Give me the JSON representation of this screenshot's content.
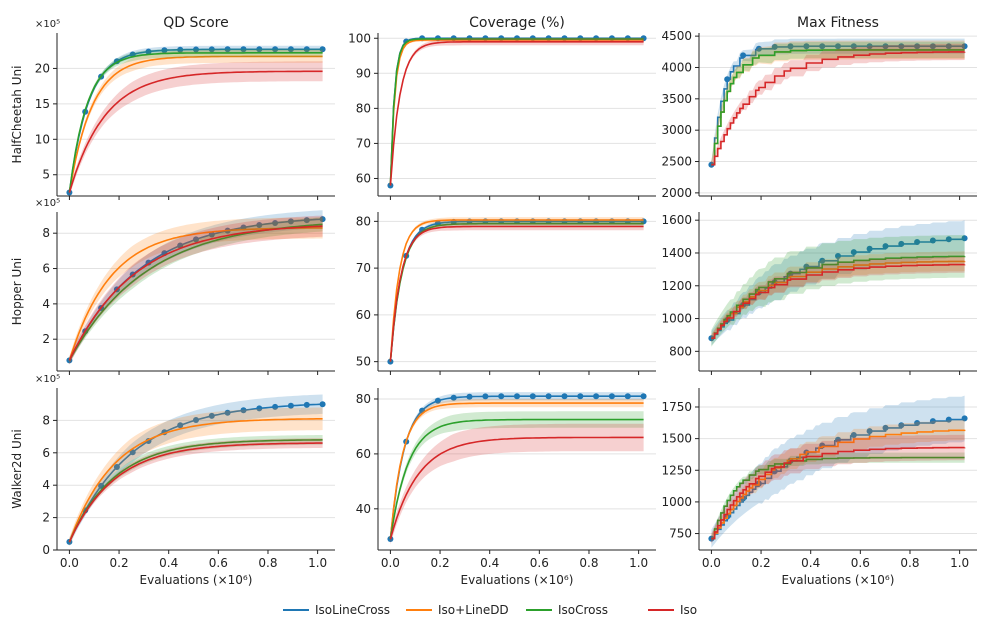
{
  "figure": {
    "column_titles": [
      "QD Score",
      "Coverage (%)",
      "Max Fitness"
    ],
    "row_labels": [
      "HalfCheetah Uni",
      "Hopper Uni",
      "Walker2d Uni"
    ],
    "xlabel": "Evaluations (×10⁶)",
    "exponent_label": "×10⁵",
    "legend": [
      {
        "name": "IsoLineCross",
        "color": "#1f77b4"
      },
      {
        "name": "Iso+LineDD",
        "color": "#ff7f0e"
      },
      {
        "name": "IsoCross",
        "color": "#2ca02c"
      },
      {
        "name": "Iso",
        "color": "#d62728"
      }
    ]
  },
  "chart_data": [
    {
      "type": "line",
      "row": 0,
      "col": 0,
      "title": "QD Score",
      "ylabel": "HalfCheetah Uni",
      "xlim": [
        -0.05,
        1.07
      ],
      "ylim": [
        2,
        25
      ],
      "yticks": [
        5,
        10,
        15,
        20
      ],
      "xticks": [
        0.0,
        0.2,
        0.4,
        0.6,
        0.8,
        1.0
      ],
      "y_unit": "×10⁵",
      "curve": "smooth",
      "y0": 2.5,
      "series": [
        {
          "name": "IsoLineCross",
          "final": 22.7,
          "k": 13,
          "band": 0.5,
          "markers": true
        },
        {
          "name": "Iso+LineDD",
          "final": 21.7,
          "k": 11,
          "band": 0.9
        },
        {
          "name": "IsoCross",
          "final": 22.2,
          "k": 14,
          "band": 0.6
        },
        {
          "name": "Iso",
          "final": 19.6,
          "k": 7,
          "band": 1.4
        }
      ]
    },
    {
      "type": "line",
      "row": 0,
      "col": 1,
      "title": "Coverage (%)",
      "ylabel": "",
      "xlim": [
        -0.05,
        1.07
      ],
      "ylim": [
        55,
        101.5
      ],
      "yticks": [
        60,
        70,
        80,
        90,
        100
      ],
      "xticks": [
        0.0,
        0.2,
        0.4,
        0.6,
        0.8,
        1.0
      ],
      "curve": "smooth",
      "y0": 58,
      "series": [
        {
          "name": "IsoLineCross",
          "final": 100,
          "k": 60,
          "band": 0.3,
          "markers": true
        },
        {
          "name": "Iso+LineDD",
          "final": 99.5,
          "k": 55,
          "band": 0.6
        },
        {
          "name": "IsoCross",
          "final": 99.8,
          "k": 60,
          "band": 0.3
        },
        {
          "name": "Iso",
          "final": 99.0,
          "k": 26,
          "band": 1.0
        }
      ]
    },
    {
      "type": "line",
      "row": 0,
      "col": 2,
      "title": "Max Fitness",
      "ylabel": "",
      "xlim": [
        -0.05,
        1.07
      ],
      "ylim": [
        1950,
        4550
      ],
      "yticks": [
        2000,
        2500,
        3000,
        3500,
        4000,
        4500
      ],
      "xticks": [
        0.0,
        0.2,
        0.4,
        0.6,
        0.8,
        1.0
      ],
      "curve": "step",
      "y0": 2450,
      "series": [
        {
          "name": "IsoLineCross",
          "final": 4340,
          "k": 20,
          "band": 120,
          "markers": true
        },
        {
          "name": "Iso+LineDD",
          "final": 4280,
          "k": 16,
          "band": 150
        },
        {
          "name": "IsoCross",
          "final": 4280,
          "k": 16,
          "band": 130
        },
        {
          "name": "Iso",
          "final": 4250,
          "k": 6,
          "band": 130
        }
      ]
    },
    {
      "type": "line",
      "row": 1,
      "col": 0,
      "title": "",
      "ylabel": "Hopper Uni",
      "xlim": [
        -0.05,
        1.07
      ],
      "ylim": [
        0.2,
        9.2
      ],
      "yticks": [
        2,
        4,
        6,
        8
      ],
      "xticks": [
        0.0,
        0.2,
        0.4,
        0.6,
        0.8,
        1.0
      ],
      "y_unit": "×10⁵",
      "curve": "smooth",
      "y0": 0.8,
      "series": [
        {
          "name": "IsoLineCross",
          "final": 8.8,
          "k": 3.5,
          "band": 0.5,
          "markers": true
        },
        {
          "name": "Iso+LineDD",
          "final": 8.3,
          "k": 6,
          "band": 0.6
        },
        {
          "name": "IsoCross",
          "final": 8.5,
          "k": 3.2,
          "band": 0.4
        },
        {
          "name": "Iso",
          "final": 8.4,
          "k": 3.8,
          "band": 0.6
        }
      ]
    },
    {
      "type": "line",
      "row": 1,
      "col": 1,
      "title": "",
      "ylabel": "",
      "xlim": [
        -0.05,
        1.07
      ],
      "ylim": [
        48,
        82
      ],
      "yticks": [
        50,
        60,
        70,
        80
      ],
      "xticks": [
        0.0,
        0.2,
        0.4,
        0.6,
        0.8,
        1.0
      ],
      "curve": "smooth",
      "y0": 50,
      "series": [
        {
          "name": "IsoLineCross",
          "final": 80,
          "k": 22,
          "band": 0.5,
          "markers": true
        },
        {
          "name": "Iso+LineDD",
          "final": 80.3,
          "k": 28,
          "band": 0.6
        },
        {
          "name": "IsoCross",
          "final": 79.5,
          "k": 22,
          "band": 0.5
        },
        {
          "name": "Iso",
          "final": 78.9,
          "k": 24,
          "band": 0.8
        }
      ]
    },
    {
      "type": "line",
      "row": 1,
      "col": 2,
      "title": "",
      "ylabel": "",
      "xlim": [
        -0.05,
        1.07
      ],
      "ylim": [
        680,
        1650
      ],
      "yticks": [
        800,
        1000,
        1200,
        1400,
        1600
      ],
      "xticks": [
        0.0,
        0.2,
        0.4,
        0.6,
        0.8,
        1.0
      ],
      "curve": "step",
      "y0": 880,
      "series": [
        {
          "name": "IsoLineCross",
          "final": 1490,
          "k": 3,
          "band": 110,
          "markers": true
        },
        {
          "name": "Iso+LineDD",
          "final": 1350,
          "k": 5,
          "band": 60
        },
        {
          "name": "IsoCross",
          "final": 1380,
          "k": 5,
          "band": 130
        },
        {
          "name": "Iso",
          "final": 1330,
          "k": 5,
          "band": 50
        }
      ]
    },
    {
      "type": "line",
      "row": 2,
      "col": 0,
      "title": "",
      "ylabel": "Walker2d Uni",
      "xlim": [
        -0.05,
        1.07
      ],
      "ylim": [
        0,
        10
      ],
      "yticks": [
        0,
        2,
        4,
        6,
        8
      ],
      "xticks": [
        0.0,
        0.2,
        0.4,
        0.6,
        0.8,
        1.0
      ],
      "y_unit": "×10⁵",
      "curve": "smooth",
      "y0": 0.5,
      "series": [
        {
          "name": "IsoLineCross",
          "final": 9.0,
          "k": 4,
          "band": 0.6,
          "markers": true
        },
        {
          "name": "Iso+LineDD",
          "final": 8.1,
          "k": 5.5,
          "band": 0.7
        },
        {
          "name": "IsoCross",
          "final": 6.8,
          "k": 5.5,
          "band": 0.3
        },
        {
          "name": "Iso",
          "final": 6.6,
          "k": 5.5,
          "band": 0.3
        }
      ]
    },
    {
      "type": "line",
      "row": 2,
      "col": 1,
      "title": "",
      "ylabel": "",
      "xlim": [
        -0.05,
        1.07
      ],
      "ylim": [
        25,
        84
      ],
      "yticks": [
        40,
        60,
        80
      ],
      "xticks": [
        0.0,
        0.2,
        0.4,
        0.6,
        0.8,
        1.0
      ],
      "curve": "smooth",
      "y0": 29,
      "series": [
        {
          "name": "IsoLineCross",
          "final": 81,
          "k": 18,
          "band": 1.5,
          "markers": true
        },
        {
          "name": "Iso+LineDD",
          "final": 78.5,
          "k": 20,
          "band": 1.5
        },
        {
          "name": "IsoCross",
          "final": 72.5,
          "k": 14,
          "band": 3
        },
        {
          "name": "Iso",
          "final": 66,
          "k": 9,
          "band": 5
        }
      ]
    },
    {
      "type": "line",
      "row": 2,
      "col": 2,
      "title": "",
      "ylabel": "",
      "xlim": [
        -0.05,
        1.07
      ],
      "ylim": [
        620,
        1900
      ],
      "yticks": [
        750,
        1000,
        1250,
        1500,
        1750
      ],
      "xticks": [
        0.0,
        0.2,
        0.4,
        0.6,
        0.8,
        1.0
      ],
      "curve": "step",
      "y0": 710,
      "series": [
        {
          "name": "IsoLineCross",
          "final": 1660,
          "k": 3,
          "band": 180,
          "markers": true
        },
        {
          "name": "Iso+LineDD",
          "final": 1570,
          "k": 4,
          "band": 80
        },
        {
          "name": "IsoCross",
          "final": 1350,
          "k": 10,
          "band": 40
        },
        {
          "name": "Iso",
          "final": 1430,
          "k": 6,
          "band": 100
        }
      ]
    }
  ]
}
